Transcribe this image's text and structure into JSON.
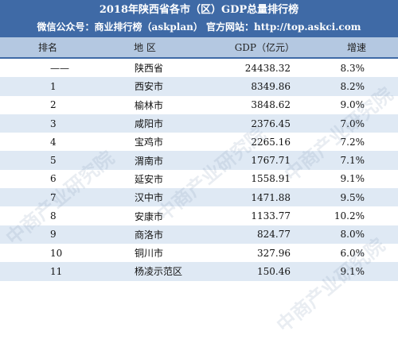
{
  "header": {
    "title": "2018年陕西省各市（区）GDP总量排行榜",
    "subtitle": "微信公众号：商业排行榜（askplan） 官方网站：http://top.askci.com"
  },
  "columns": {
    "rank": "排名",
    "region": "地  区",
    "gdp": "GDP（亿元）",
    "growth": "增速"
  },
  "rows": [
    {
      "rank": "——",
      "region": "陕西省",
      "gdp": "24438.32",
      "growth": "8.3%"
    },
    {
      "rank": "1",
      "region": "西安市",
      "gdp": "8349.86",
      "growth": "8.2%"
    },
    {
      "rank": "2",
      "region": "榆林市",
      "gdp": "3848.62",
      "growth": "9.0%"
    },
    {
      "rank": "3",
      "region": "咸阳市",
      "gdp": "2376.45",
      "growth": "7.0%"
    },
    {
      "rank": "4",
      "region": "宝鸡市",
      "gdp": "2265.16",
      "growth": "7.2%"
    },
    {
      "rank": "5",
      "region": "渭南市",
      "gdp": "1767.71",
      "growth": "7.1%"
    },
    {
      "rank": "6",
      "region": "延安市",
      "gdp": "1558.91",
      "growth": "9.1%"
    },
    {
      "rank": "7",
      "region": "汉中市",
      "gdp": "1471.88",
      "growth": "9.5%"
    },
    {
      "rank": "8",
      "region": "安康市",
      "gdp": "1133.77",
      "growth": "10.2%"
    },
    {
      "rank": "9",
      "region": "商洛市",
      "gdp": "824.77",
      "growth": "8.0%"
    },
    {
      "rank": "10",
      "region": "铜川市",
      "gdp": "327.96",
      "growth": "6.0%"
    },
    {
      "rank": "11",
      "region": "杨凌示范区",
      "gdp": "150.46",
      "growth": "9.1%"
    }
  ],
  "watermark": {
    "text": "中商产业研究院"
  }
}
